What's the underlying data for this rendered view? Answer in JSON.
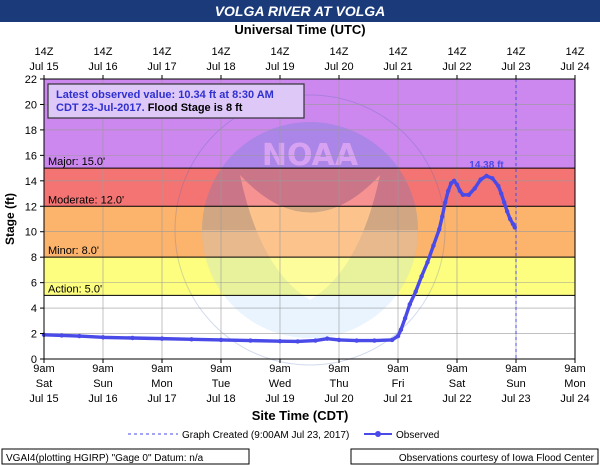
{
  "chart_data": {
    "type": "line",
    "title": "VOLGA RIVER AT VOLGA",
    "top_axis_title": "Universal Time (UTC)",
    "xlabel": "Site Time (CDT)",
    "ylabel": "Stage (ft)",
    "ylim": [
      0,
      22
    ],
    "y_ticks": [
      "0",
      "2",
      "4",
      "6",
      "8",
      "10",
      "12",
      "14",
      "16",
      "18",
      "20",
      "22"
    ],
    "grid": true,
    "x_ticks_bottom": [
      {
        "time": "9am",
        "day": "Sat",
        "date": "Jul 15"
      },
      {
        "time": "9am",
        "day": "Sun",
        "date": "Jul 16"
      },
      {
        "time": "9am",
        "day": "Mon",
        "date": "Jul 17"
      },
      {
        "time": "9am",
        "day": "Tue",
        "date": "Jul 18"
      },
      {
        "time": "9am",
        "day": "Wed",
        "date": "Jul 19"
      },
      {
        "time": "9am",
        "day": "Thu",
        "date": "Jul 20"
      },
      {
        "time": "9am",
        "day": "Fri",
        "date": "Jul 21"
      },
      {
        "time": "9am",
        "day": "Sat",
        "date": "Jul 22"
      },
      {
        "time": "9am",
        "day": "Sun",
        "date": "Jul 23"
      },
      {
        "time": "9am",
        "day": "Mon",
        "date": "Jul 24"
      }
    ],
    "x_ticks_top": [
      {
        "time": "14Z",
        "date": "Jul 15"
      },
      {
        "time": "14Z",
        "date": "Jul 16"
      },
      {
        "time": "14Z",
        "date": "Jul 17"
      },
      {
        "time": "14Z",
        "date": "Jul 18"
      },
      {
        "time": "14Z",
        "date": "Jul 19"
      },
      {
        "time": "14Z",
        "date": "Jul 20"
      },
      {
        "time": "14Z",
        "date": "Jul 21"
      },
      {
        "time": "14Z",
        "date": "Jul 22"
      },
      {
        "time": "14Z",
        "date": "Jul 23"
      },
      {
        "time": "14Z",
        "date": "Jul 24"
      }
    ],
    "flood_categories": [
      {
        "label": "Major: 15.0'",
        "from": 15,
        "to": 22,
        "color": "#cc88ee"
      },
      {
        "label": "Moderate: 12.0'",
        "from": 12,
        "to": 15,
        "color": "#f47474"
      },
      {
        "label": "Minor: 8.0'",
        "from": 8,
        "to": 12,
        "color": "#fcb36c"
      },
      {
        "label": "Action: 5.0'",
        "from": 5,
        "to": 8,
        "color": "#fdfd80"
      }
    ],
    "infobox": {
      "line1": "Latest observed value: 10.34 ft at 8:30 AM",
      "line2_highlight": "CDT 23-Jul-2017.",
      "line2_rest": " Flood Stage is 8 ft"
    },
    "peak_label": "14.38 ft",
    "graph_created_at": 8.0,
    "series": [
      {
        "name": "Observed",
        "color": "#4a4ae8",
        "x": [
          0.0,
          0.3,
          0.6,
          1.0,
          1.5,
          2.0,
          2.5,
          3.0,
          3.5,
          4.0,
          4.3,
          4.6,
          4.8,
          5.0,
          5.3,
          5.6,
          5.9,
          6.0,
          6.05,
          6.12,
          6.2,
          6.3,
          6.4,
          6.5,
          6.6,
          6.7,
          6.75,
          6.8,
          6.85,
          6.9,
          6.95,
          7.0,
          7.05,
          7.1,
          7.2,
          7.3,
          7.4,
          7.5,
          7.6,
          7.7,
          7.75,
          7.8,
          7.85,
          7.9,
          7.95,
          7.98
        ],
        "y": [
          1.9,
          1.85,
          1.8,
          1.7,
          1.65,
          1.6,
          1.55,
          1.5,
          1.45,
          1.4,
          1.38,
          1.45,
          1.6,
          1.5,
          1.45,
          1.45,
          1.5,
          1.8,
          2.3,
          3.2,
          4.3,
          5.3,
          6.5,
          7.6,
          8.9,
          10.2,
          11.2,
          12.3,
          13.2,
          13.8,
          14.0,
          13.7,
          13.2,
          12.9,
          12.9,
          13.4,
          14.1,
          14.38,
          14.2,
          13.6,
          13.0,
          12.3,
          11.6,
          11.0,
          10.6,
          10.34
        ]
      }
    ]
  },
  "legend": {
    "graph_created": "Graph Created (9:00AM Jul 23, 2017)",
    "observed": "Observed"
  },
  "footer": {
    "left": "VGAI4(plotting HGIRP) \"Gage 0\" Datum: n/a",
    "right": "Observations courtesy of Iowa Flood Center"
  },
  "watermark": {
    "text": "NATIONAL OCEANIC AND ATMOSPHERIC ADMINISTRATION",
    "bottom_text": "U.S. DEPARTMENT OF COMMERCE",
    "center": "NOAA"
  }
}
